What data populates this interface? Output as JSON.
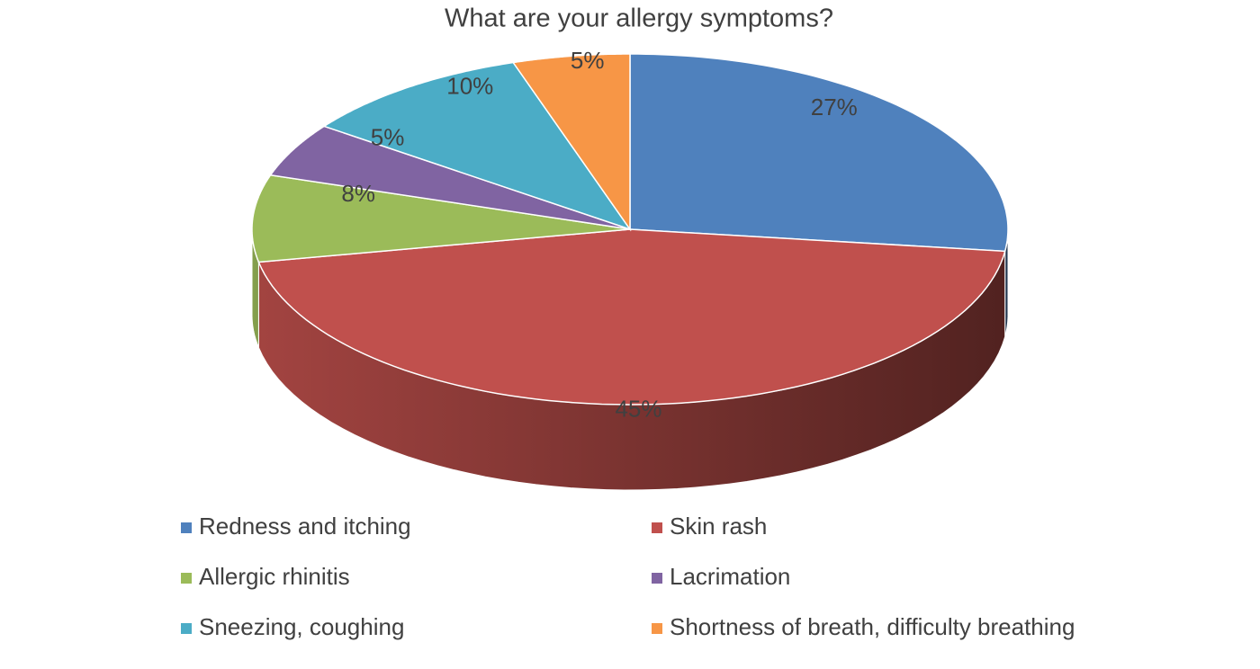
{
  "chart_data": {
    "type": "pie",
    "title": "What are your allergy symptoms?",
    "categories": [
      "Redness and itching",
      "Skin rash",
      "Allergic rhinitis",
      "Lacrimation",
      "Sneezing, coughing",
      "Shortness of breath, difficulty breathing"
    ],
    "values": [
      27,
      45,
      8,
      5,
      10,
      5
    ],
    "value_labels": [
      "27%",
      "45%",
      "8%",
      "5%",
      "10%",
      "5%"
    ],
    "colors": [
      "#4f81bd",
      "#c0504d",
      "#9bbb59",
      "#8064a2",
      "#4bacc6",
      "#f79646"
    ],
    "legend": "bottom"
  }
}
